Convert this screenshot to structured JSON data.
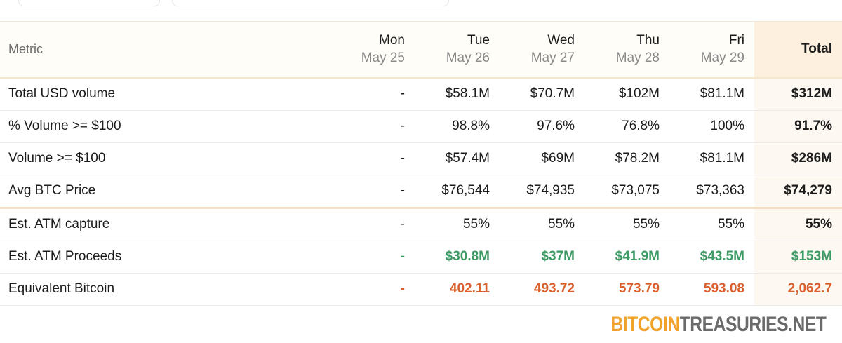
{
  "header": {
    "metric_label": "Metric",
    "total_label": "Total",
    "days": [
      {
        "dow": "Mon",
        "date": "May 25"
      },
      {
        "dow": "Tue",
        "date": "May 26"
      },
      {
        "dow": "Wed",
        "date": "May 27"
      },
      {
        "dow": "Thu",
        "date": "May 28"
      },
      {
        "dow": "Fri",
        "date": "May 29"
      }
    ]
  },
  "rows": [
    {
      "label": "Total USD volume",
      "values": [
        "-",
        "$58.1M",
        "$70.7M",
        "$102M",
        "$81.1M"
      ],
      "total": "$312M"
    },
    {
      "label": "% Volume >= $100",
      "values": [
        "-",
        "98.8%",
        "97.6%",
        "76.8%",
        "100%"
      ],
      "total": "91.7%"
    },
    {
      "label": "Volume >= $100",
      "values": [
        "-",
        "$57.4M",
        "$69M",
        "$78.2M",
        "$81.1M"
      ],
      "total": "$286M"
    },
    {
      "label": "Avg BTC Price",
      "values": [
        "-",
        "$76,544",
        "$74,935",
        "$73,075",
        "$73,363"
      ],
      "total": "$74,279"
    },
    {
      "label": "Est. ATM capture",
      "values": [
        "-",
        "55%",
        "55%",
        "55%",
        "55%"
      ],
      "total": "55%"
    },
    {
      "label": "Est. ATM Proceeds",
      "values": [
        "-",
        "$30.8M",
        "$37M",
        "$41.9M",
        "$43.5M"
      ],
      "total": "$153M"
    },
    {
      "label": "Equivalent Bitcoin",
      "values": [
        "-",
        "402.11",
        "493.72",
        "573.79",
        "593.08"
      ],
      "total": "2,062.7"
    }
  ],
  "colors": {
    "green": "#3d9a65",
    "orange": "#d9602e",
    "brand_accent": "#f1a22a"
  },
  "brand": {
    "part1": "BITCOIN",
    "part2": "TREASURIES",
    "part3": ".NET"
  }
}
